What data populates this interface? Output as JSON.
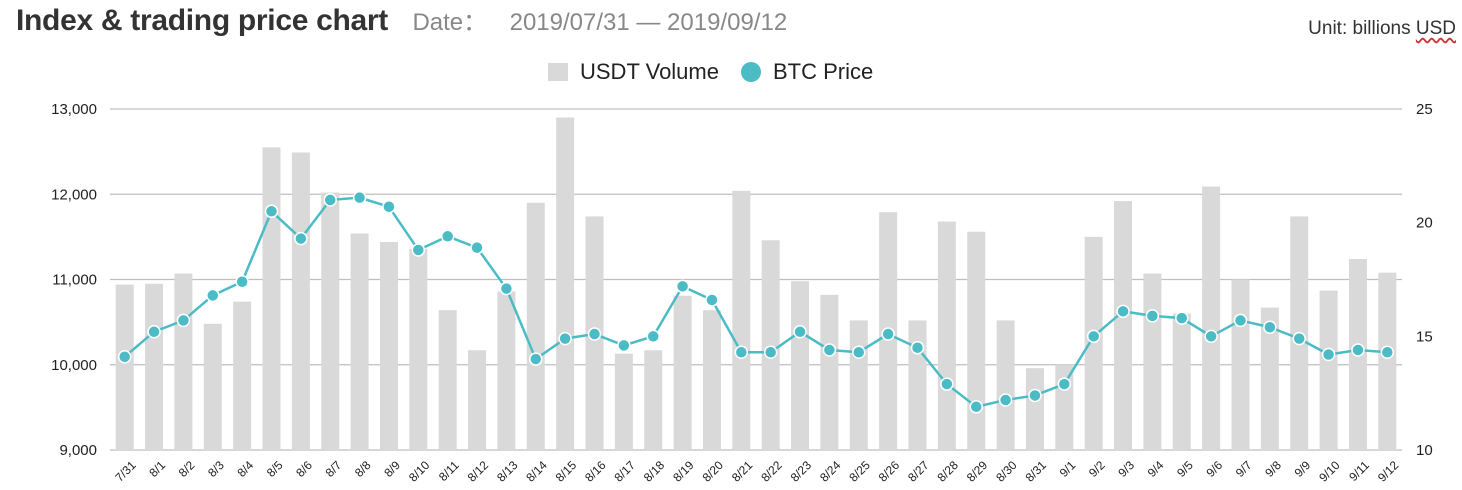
{
  "header": {
    "title": "Index & trading price chart",
    "date_label": "Date：",
    "date_range": "2019/07/31 — 2019/09/12",
    "unit_prefix": "Unit: billions ",
    "unit_currency": "USD"
  },
  "legend": {
    "volume_label": "USDT Volume",
    "price_label": "BTC Price"
  },
  "colors": {
    "bar": "#d9d9d9",
    "line": "#4bbcc6",
    "grid": "#bfbfbf"
  },
  "chart_data": {
    "type": "bar",
    "categories": [
      "7/31",
      "8/1",
      "8/2",
      "8/3",
      "8/4",
      "8/5",
      "8/6",
      "8/7",
      "8/8",
      "8/9",
      "8/10",
      "8/11",
      "8/12",
      "8/13",
      "8/14",
      "8/15",
      "8/16",
      "8/17",
      "8/18",
      "8/19",
      "8/20",
      "8/21",
      "8/22",
      "8/23",
      "8/24",
      "8/25",
      "8/26",
      "8/27",
      "8/28",
      "8/29",
      "8/30",
      "8/31",
      "9/1",
      "9/2",
      "9/3",
      "9/4",
      "9/5",
      "9/6",
      "9/7",
      "9/8",
      "9/9",
      "9/10",
      "9/11",
      "9/12"
    ],
    "series": [
      {
        "name": "USDT Volume",
        "type": "bar",
        "axis": "left",
        "values": [
          10940,
          10950,
          11070,
          10480,
          10740,
          12550,
          12490,
          12020,
          11540,
          11440,
          11360,
          10640,
          10170,
          10860,
          11900,
          12900,
          11740,
          10130,
          10170,
          10810,
          10640,
          12040,
          11460,
          10980,
          10820,
          10520,
          11790,
          10520,
          11680,
          11560,
          10520,
          9960,
          10000,
          11500,
          11920,
          11070,
          10600,
          12090,
          11000,
          10670,
          11740,
          10870,
          11240,
          11080
        ]
      },
      {
        "name": "BTC Price",
        "type": "line",
        "axis": "right",
        "values": [
          14.1,
          15.2,
          15.7,
          16.8,
          17.4,
          20.5,
          19.3,
          21.0,
          21.1,
          20.7,
          18.8,
          19.4,
          18.9,
          17.1,
          14.0,
          14.9,
          15.1,
          14.6,
          15.0,
          17.2,
          16.6,
          14.3,
          14.3,
          15.2,
          14.4,
          14.3,
          15.1,
          14.5,
          12.9,
          11.9,
          12.2,
          12.4,
          12.9,
          15.0,
          16.1,
          15.9,
          15.8,
          15.0,
          15.7,
          15.4,
          14.9,
          14.2,
          14.4,
          14.3
        ]
      }
    ],
    "ylim_left": [
      9000,
      13000
    ],
    "yticks_left": [
      "9,000",
      "10,000",
      "11,000",
      "12,000",
      "13,000"
    ],
    "ylim_right": [
      10,
      25
    ],
    "yticks_right": [
      "10",
      "15",
      "20",
      "25"
    ],
    "grid": true,
    "legend_position": "top-center"
  }
}
